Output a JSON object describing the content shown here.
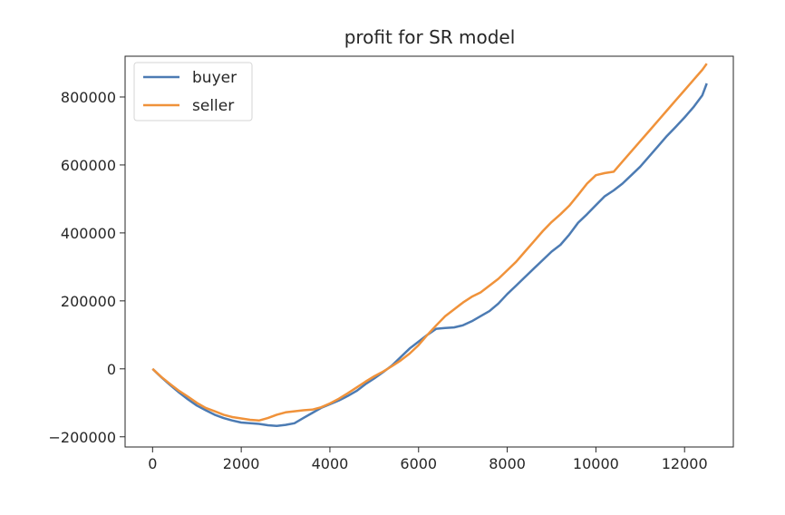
{
  "chart_data": {
    "type": "line",
    "title": "profit for SR model",
    "xlabel": "",
    "ylabel": "",
    "xlim": [
      -620,
      13100
    ],
    "ylim": [
      -230000,
      920000
    ],
    "x_ticks": [
      0,
      2000,
      4000,
      6000,
      8000,
      10000,
      12000
    ],
    "x_tick_labels": [
      "0",
      "2000",
      "4000",
      "6000",
      "8000",
      "10000",
      "12000"
    ],
    "y_ticks": [
      -200000,
      0,
      200000,
      400000,
      600000,
      800000
    ],
    "y_tick_labels": [
      "−200000",
      "0",
      "200000",
      "400000",
      "600000",
      "800000"
    ],
    "grid": false,
    "legend_position": "upper-left",
    "series": [
      {
        "name": "buyer",
        "color": "#4c7bb3",
        "x": [
          0,
          200,
          400,
          600,
          800,
          1000,
          1200,
          1400,
          1600,
          1800,
          2000,
          2200,
          2400,
          2600,
          2800,
          3000,
          3200,
          3400,
          3600,
          3800,
          4000,
          4200,
          4400,
          4600,
          4800,
          5000,
          5200,
          5400,
          5600,
          5800,
          6000,
          6200,
          6400,
          6600,
          6800,
          7000,
          7200,
          7400,
          7600,
          7800,
          8000,
          8200,
          8400,
          8600,
          8800,
          9000,
          9200,
          9400,
          9600,
          9800,
          10000,
          10200,
          10400,
          10600,
          10800,
          11000,
          11200,
          11400,
          11600,
          11800,
          12000,
          12200,
          12400,
          12500
        ],
        "y": [
          0,
          -25000,
          -48000,
          -70000,
          -90000,
          -108000,
          -122000,
          -135000,
          -145000,
          -152000,
          -158000,
          -160000,
          -162000,
          -166000,
          -168000,
          -165000,
          -160000,
          -145000,
          -130000,
          -115000,
          -104000,
          -93000,
          -80000,
          -65000,
          -45000,
          -28000,
          -10000,
          10000,
          35000,
          60000,
          80000,
          100000,
          118000,
          120000,
          122000,
          128000,
          140000,
          155000,
          170000,
          192000,
          220000,
          245000,
          270000,
          295000,
          320000,
          345000,
          365000,
          395000,
          430000,
          455000,
          482000,
          508000,
          525000,
          545000,
          570000,
          595000,
          625000,
          655000,
          685000,
          712000,
          740000,
          770000,
          805000,
          840000
        ]
      },
      {
        "name": "seller",
        "color": "#f0923a",
        "x": [
          0,
          200,
          400,
          600,
          800,
          1000,
          1200,
          1400,
          1600,
          1800,
          2000,
          2200,
          2400,
          2600,
          2800,
          3000,
          3200,
          3400,
          3600,
          3800,
          4000,
          4200,
          4400,
          4600,
          4800,
          5000,
          5200,
          5400,
          5600,
          5800,
          6000,
          6200,
          6400,
          6600,
          6800,
          7000,
          7200,
          7400,
          7600,
          7800,
          8000,
          8200,
          8400,
          8600,
          8800,
          9000,
          9200,
          9400,
          9600,
          9800,
          10000,
          10200,
          10400,
          10600,
          10800,
          11000,
          11200,
          11400,
          11600,
          11800,
          12000,
          12200,
          12400,
          12500
        ],
        "y": [
          0,
          -24000,
          -45000,
          -65000,
          -82000,
          -100000,
          -115000,
          -125000,
          -135000,
          -142000,
          -146000,
          -150000,
          -152000,
          -145000,
          -135000,
          -128000,
          -125000,
          -122000,
          -120000,
          -113000,
          -102000,
          -88000,
          -72000,
          -55000,
          -38000,
          -22000,
          -8000,
          8000,
          25000,
          45000,
          70000,
          100000,
          128000,
          155000,
          175000,
          195000,
          212000,
          225000,
          245000,
          265000,
          290000,
          315000,
          345000,
          375000,
          405000,
          432000,
          455000,
          480000,
          512000,
          545000,
          570000,
          576000,
          580000,
          610000,
          640000,
          670000,
          700000,
          730000,
          760000,
          790000,
          820000,
          850000,
          880000,
          898000
        ]
      }
    ]
  }
}
